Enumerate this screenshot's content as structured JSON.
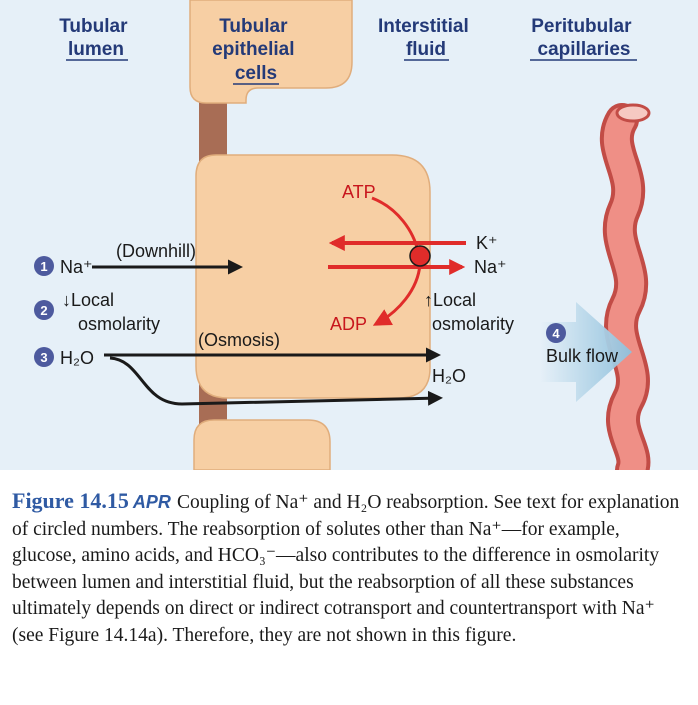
{
  "headers": {
    "lumen": [
      "Tubular",
      "lumen"
    ],
    "epithelial": [
      "Tubular",
      "epithelial",
      "cells"
    ],
    "interstitial": [
      "Interstitial",
      "fluid"
    ],
    "capillaries": [
      "Peritubular",
      "capillaries"
    ]
  },
  "labels": {
    "step1_ion": "Na⁺",
    "downhill": "(Downhill)",
    "step2_line1": "↓Local",
    "step2_line2": "osmolarity",
    "osmosis": "(Osmosis)",
    "step3_water": "H₂O",
    "atp": "ATP",
    "adp": "ADP",
    "pump_k": "K⁺",
    "pump_na": "Na⁺",
    "up_local_1": "↑Local",
    "up_local_2": "osmolarity",
    "water_interstitial": "H₂O",
    "bulk_flow": "Bulk flow"
  },
  "badges": [
    "1",
    "2",
    "3",
    "4"
  ],
  "caption": {
    "figure_number": "Figure 14.15",
    "apr": "APR",
    "text": "Coupling of Na⁺ and H₂O reabsorption. See text for explanation of circled numbers. The reabsorption of solutes other than Na⁺—for example, glucose, amino acids, and HCO₃⁻—also contributes to the difference in osmolarity between lumen and interstitial fluid, but the reabsorption of all these substances ultimately depends on direct or indirect cotransport and countertransport with Na⁺ (see Figure 14.14a). Therefore, they are not shown in this figure."
  },
  "colors": {
    "background": "#e6f0f8",
    "cell_fill": "#f7cfa4",
    "cell_stroke": "#e0ad7c",
    "junction": "#a86d55",
    "capillary": "#e4746c",
    "pump_arrow": "#e02c2a",
    "bulk_flow": "#a6cfe4",
    "badge": "#4d5a9e",
    "header_text": "#243a78",
    "figure_number": "#2f5aa3"
  }
}
